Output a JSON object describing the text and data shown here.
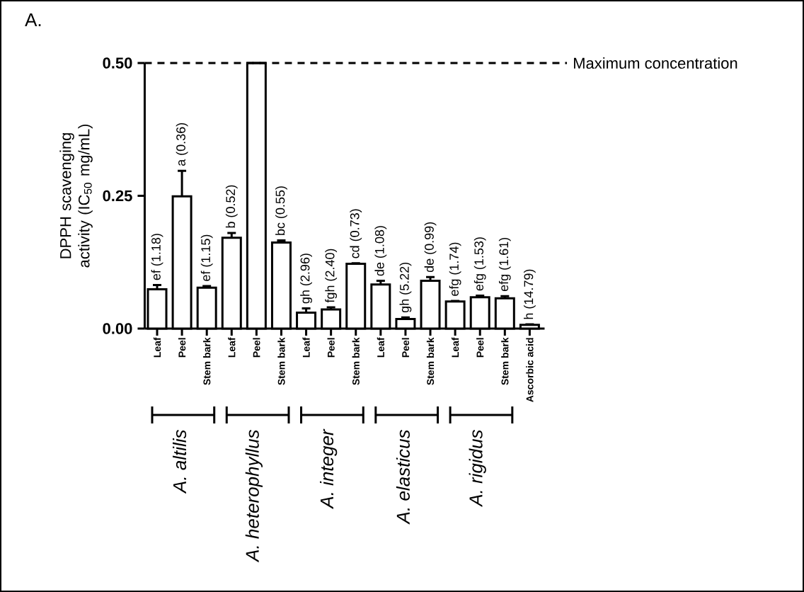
{
  "chart_data": {
    "type": "bar",
    "ylabel": "DPPH scavenging activity (IC$_{50}$ mg/mL)",
    "categories": [
      "Leaf",
      "Peel",
      "Stem bark",
      "Leaf",
      "Peel",
      "Stem bark",
      "Leaf",
      "Peel",
      "Stem bark",
      "Leaf",
      "Peel",
      "Stem bark",
      "Leaf",
      "Peel",
      "Stem bark",
      "Ascorbic acid"
    ],
    "values": [
      0.074,
      0.249,
      0.077,
      0.171,
      0.5,
      0.162,
      0.03,
      0.036,
      0.122,
      0.083,
      0.018,
      0.09,
      0.051,
      0.059,
      0.057,
      0.007
    ],
    "errors": [
      [
        0.074,
        0.082
      ],
      [
        0.249,
        0.297
      ],
      [
        0.077,
        0.08
      ],
      [
        0.171,
        0.18
      ],
      null,
      [
        0.162,
        0.166
      ],
      [
        0.03,
        0.038
      ],
      [
        0.036,
        0.04
      ],
      [
        0.122,
        0.123
      ],
      [
        0.083,
        0.09
      ],
      [
        0.018,
        0.021
      ],
      [
        0.09,
        0.097
      ],
      [
        0.051,
        0.052
      ],
      [
        0.059,
        0.062
      ],
      [
        0.057,
        0.061
      ],
      [
        0.007,
        0.008
      ]
    ],
    "color": "#000000",
    "ylim": [
      0,
      0.5
    ],
    "yticks": [
      {
        "value": 0,
        "label": "0.00"
      },
      {
        "value": 0.25,
        "label": "0.25"
      },
      {
        "value": 0.5,
        "label": "0.50"
      }
    ],
    "ref_lines": [
      {
        "axis": "y",
        "value": 0.5,
        "label": "Maximum concentration",
        "line_style": "dashed"
      }
    ],
    "annotations": [
      "A.",
      "A. altilis",
      "A. heterophyllus",
      "A. integer",
      "A. elasticus",
      "A. rigidus",
      "ef (1.18)",
      "a (0.36)",
      "ef (1.15)",
      "b (0.52)",
      "bc (0.55)",
      "gh (2.96)",
      "fgh (2.40)",
      "cd (0.73)",
      "de (1.08)",
      "gh (5.22)",
      "de (0.99)",
      "efg (1.74)",
      "efg (1.53)",
      "efg (1.61)",
      "h (14.79)"
    ]
  }
}
